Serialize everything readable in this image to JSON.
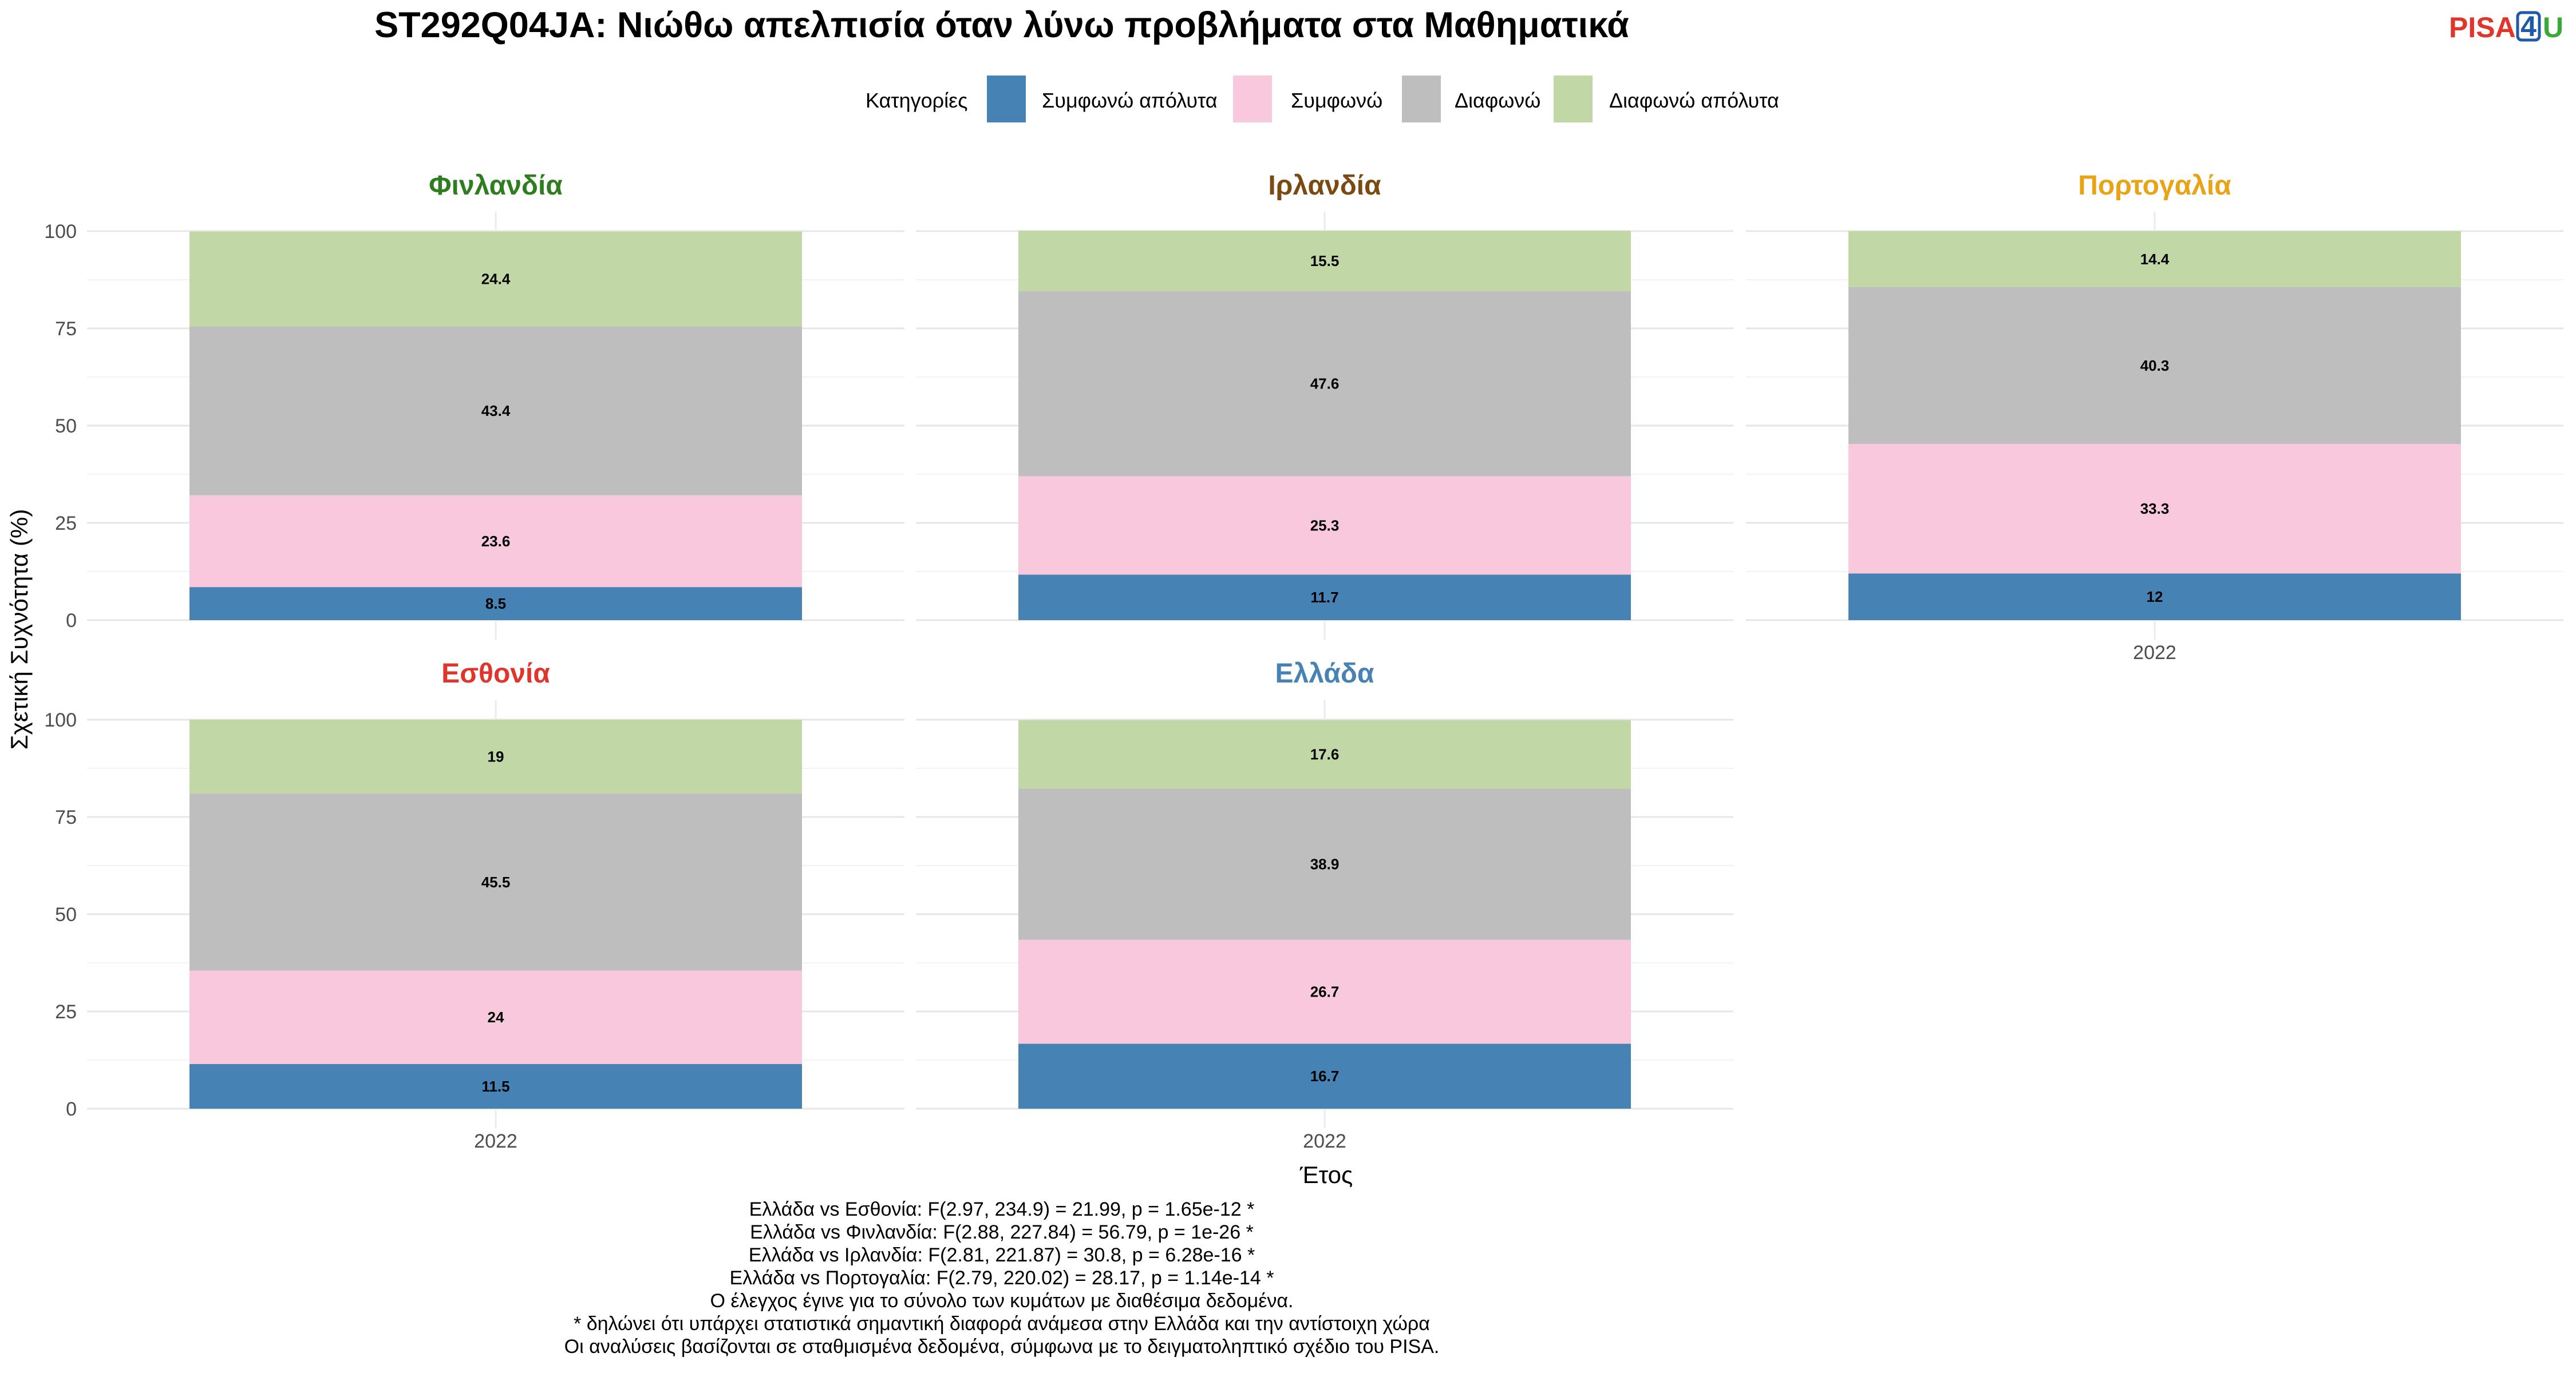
{
  "title": "ST292Q04JA: Νιώθω απελπισία όταν λύνω προβλήματα στα Μαθηματικά",
  "logo": {
    "part1": "PISA",
    "part2": "4",
    "part3": "U"
  },
  "legend": {
    "title": "Κατηγορίες"
  },
  "colors": {
    "Συμφωνώ απόλυτα": "#4682B4",
    "Συμφωνώ": "#F8C8DC",
    "Διαφωνώ": "#BEBEBE",
    "Διαφωνώ απόλυτα": "#C1D7A6"
  },
  "chart_data": {
    "type": "bar",
    "stacked": true,
    "ylabel": "Σχετική Συχνότητα (%)",
    "xlabel": "Έτος",
    "ylim": [
      0,
      100
    ],
    "yticks": [
      0,
      25,
      50,
      75,
      100
    ],
    "grid": true,
    "legend_position": "top",
    "categories": [
      "2022"
    ],
    "series_names": [
      "Συμφωνώ απόλυτα",
      "Συμφωνώ",
      "Διαφωνώ",
      "Διαφωνώ απόλυτα"
    ],
    "panels": [
      {
        "country": "Φινλανδία",
        "title_color": "#2E7D1E",
        "year": "2022",
        "values": [
          8.5,
          23.6,
          43.4,
          24.4
        ]
      },
      {
        "country": "Ιρλανδία",
        "title_color": "#7B4A12",
        "year": "2022",
        "values": [
          11.7,
          25.3,
          47.6,
          15.5
        ]
      },
      {
        "country": "Πορτογαλία",
        "title_color": "#E8A317",
        "year": "2022",
        "values": [
          12,
          33.3,
          40.3,
          14.4
        ]
      },
      {
        "country": "Εσθονία",
        "title_color": "#E0352B",
        "year": "2022",
        "values": [
          11.5,
          24,
          45.5,
          19
        ]
      },
      {
        "country": "Ελλάδα",
        "title_color": "#4682B4",
        "year": "2022",
        "values": [
          16.7,
          26.7,
          38.9,
          17.6
        ]
      }
    ]
  },
  "caption": [
    "Ελλάδα vs Εσθονία: F(2.97, 234.9) = 21.99, p = 1.65e-12 *",
    "Ελλάδα vs Φινλανδία: F(2.88, 227.84) = 56.79, p = 1e-26 *",
    "Ελλάδα vs Ιρλανδία: F(2.81, 221.87) = 30.8, p = 6.28e-16 *",
    "Ελλάδα vs Πορτογαλία: F(2.79, 220.02) = 28.17, p = 1.14e-14 *",
    "Ο έλεγχος έγινε για το σύνολο των κυμάτων με διαθέσιμα δεδομένα.",
    "* δηλώνει ότι υπάρχει στατιστικά σημαντική διαφορά ανάμεσα στην Ελλάδα και την αντίστοιχη χώρα",
    "Οι αναλύσεις βασίζονται σε σταθμισμένα δεδομένα, σύμφωνα με το δειγματοληπτικό σχέδιο του PISA."
  ]
}
